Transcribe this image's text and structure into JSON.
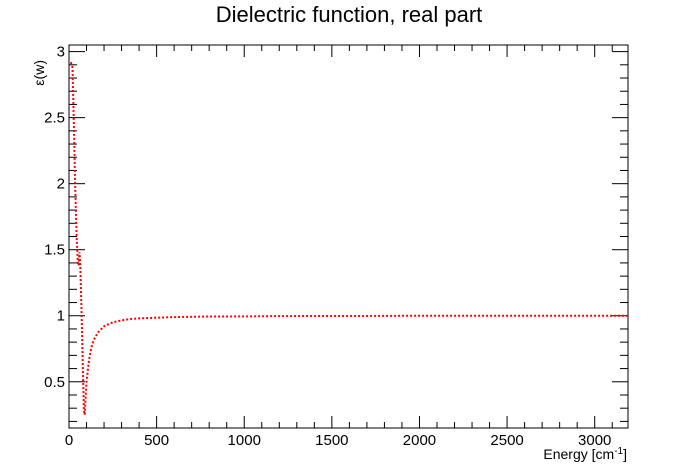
{
  "chart_data": {
    "type": "line",
    "title": "Dielectric function, real part",
    "xlabel": "Energy [cm",
    "xlabel_sup": "-1",
    "xlabel_close": "]",
    "ylabel": "ε(w)",
    "xlim": [
      0,
      3190
    ],
    "ylim": [
      0.15,
      3.05
    ],
    "xticks": [
      0,
      500,
      1000,
      1500,
      2000,
      2500,
      3000
    ],
    "xtick_labels": [
      "0",
      "500",
      "1000",
      "1500",
      "2000",
      "2500",
      "3000"
    ],
    "yticks": [
      0.5,
      1,
      1.5,
      2,
      2.5,
      3
    ],
    "ytick_labels": [
      "0.5",
      "1",
      "1.5",
      "2",
      "2.5",
      "3"
    ],
    "grid": false,
    "series": [
      {
        "color": "#ff0000",
        "style": "dotted",
        "x": [
          10,
          15,
          20,
          25,
          30,
          35,
          40,
          45,
          50,
          55,
          60,
          65,
          70,
          75,
          80,
          85,
          90,
          95,
          100,
          110,
          120,
          130,
          140,
          150,
          170,
          200,
          250,
          300,
          350,
          400,
          500,
          600,
          700,
          800,
          1000,
          1200,
          1400,
          1600,
          1800,
          2000,
          2200,
          2400,
          2600,
          2800,
          3000,
          3190
        ],
        "y": [
          2.92,
          2.9,
          2.88,
          2.6,
          2.3,
          2.0,
          1.75,
          1.55,
          1.4,
          1.38,
          1.48,
          1.35,
          1.1,
          0.85,
          0.55,
          0.28,
          0.25,
          0.38,
          0.5,
          0.62,
          0.71,
          0.77,
          0.81,
          0.84,
          0.88,
          0.92,
          0.95,
          0.965,
          0.975,
          0.98,
          0.985,
          0.99,
          0.992,
          0.994,
          0.995,
          0.997,
          0.998,
          0.998,
          0.999,
          1.0,
          1.0,
          1.0,
          1.0,
          1.0,
          1.0,
          1.0
        ]
      }
    ]
  }
}
